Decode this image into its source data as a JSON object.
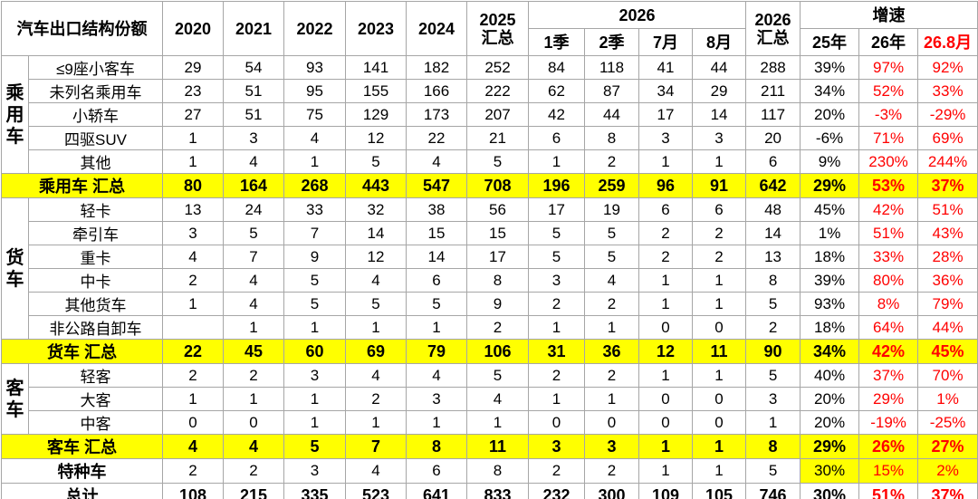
{
  "header": {
    "title": "汽车出口结构份额",
    "years": [
      "2020",
      "2021",
      "2022",
      "2023",
      "2024"
    ],
    "col_2025": [
      "2025",
      "汇总"
    ],
    "group_2026": "2026",
    "sub_2026": [
      "1季",
      "2季",
      "7月",
      "8月"
    ],
    "col_2026_total": [
      "2026",
      "汇总"
    ],
    "group_growth": "增速",
    "sub_growth": [
      "25年",
      "26年",
      "26.8月"
    ]
  },
  "groups": [
    {
      "label": "乘用车",
      "rows": [
        {
          "label": "≤9座小客车",
          "cells": [
            29,
            54,
            93,
            141,
            182,
            252,
            84,
            118,
            41,
            44,
            288,
            "39%",
            "97%",
            "92%"
          ]
        },
        {
          "label": "未列名乘用车",
          "cells": [
            23,
            51,
            95,
            155,
            166,
            222,
            62,
            87,
            34,
            29,
            211,
            "34%",
            "52%",
            "33%"
          ]
        },
        {
          "label": "小轿车",
          "cells": [
            27,
            51,
            75,
            129,
            173,
            207,
            42,
            44,
            17,
            14,
            117,
            "20%",
            "-3%",
            "-29%"
          ]
        },
        {
          "label": "四驱SUV",
          "cells": [
            1,
            3,
            4,
            12,
            22,
            21,
            6,
            8,
            3,
            3,
            20,
            "-6%",
            "71%",
            "69%"
          ]
        },
        {
          "label": "其他",
          "cells": [
            1,
            4,
            1,
            5,
            4,
            5,
            1,
            2,
            1,
            1,
            6,
            "9%",
            "230%",
            "244%"
          ]
        }
      ],
      "total": {
        "label": "乘用车 汇总",
        "cells": [
          80,
          164,
          268,
          443,
          547,
          708,
          196,
          259,
          96,
          91,
          642,
          "29%",
          "53%",
          "37%"
        ]
      }
    },
    {
      "label": "货车",
      "rows": [
        {
          "label": "轻卡",
          "cells": [
            13,
            24,
            33,
            32,
            38,
            56,
            17,
            19,
            6,
            6,
            48,
            "45%",
            "42%",
            "51%"
          ]
        },
        {
          "label": "牵引车",
          "cells": [
            3,
            5,
            7,
            14,
            15,
            15,
            5,
            5,
            2,
            2,
            14,
            "1%",
            "51%",
            "43%"
          ]
        },
        {
          "label": "重卡",
          "cells": [
            4,
            7,
            9,
            12,
            14,
            17,
            5,
            5,
            2,
            2,
            13,
            "18%",
            "33%",
            "28%"
          ]
        },
        {
          "label": "中卡",
          "cells": [
            2,
            4,
            5,
            4,
            6,
            8,
            3,
            4,
            1,
            1,
            8,
            "39%",
            "80%",
            "36%"
          ]
        },
        {
          "label": "其他货车",
          "cells": [
            1,
            4,
            5,
            5,
            5,
            9,
            2,
            2,
            1,
            1,
            5,
            "93%",
            "8%",
            "79%"
          ]
        },
        {
          "label": "非公路自卸车",
          "cells": [
            null,
            1,
            1,
            1,
            1,
            2,
            1,
            1,
            0,
            0,
            2,
            "18%",
            "64%",
            "44%"
          ]
        }
      ],
      "total": {
        "label": "货车 汇总",
        "cells": [
          22,
          45,
          60,
          69,
          79,
          106,
          31,
          36,
          12,
          11,
          90,
          "34%",
          "42%",
          "45%"
        ]
      }
    },
    {
      "label": "客车",
      "rows": [
        {
          "label": "轻客",
          "cells": [
            2,
            2,
            3,
            4,
            4,
            5,
            2,
            2,
            1,
            1,
            5,
            "40%",
            "37%",
            "70%"
          ]
        },
        {
          "label": "大客",
          "cells": [
            1,
            1,
            1,
            2,
            3,
            4,
            1,
            1,
            0,
            0,
            3,
            "20%",
            "29%",
            "1%"
          ]
        },
        {
          "label": "中客",
          "cells": [
            0,
            0,
            1,
            1,
            1,
            1,
            0,
            0,
            0,
            0,
            1,
            "20%",
            "-19%",
            "-25%"
          ]
        }
      ],
      "total": {
        "label": "客车 汇总",
        "cells": [
          4,
          4,
          5,
          7,
          8,
          11,
          3,
          3,
          1,
          1,
          8,
          "29%",
          "26%",
          "27%"
        ]
      }
    }
  ],
  "special": {
    "label": "特种车",
    "cells": [
      2,
      2,
      3,
      4,
      6,
      8,
      2,
      2,
      1,
      1,
      5,
      "30%",
      "15%",
      "2%"
    ]
  },
  "grand_total": {
    "label": "总计",
    "cells": [
      108,
      215,
      335,
      523,
      641,
      833,
      232,
      300,
      109,
      105,
      746,
      "30%",
      "51%",
      "37%"
    ]
  }
}
